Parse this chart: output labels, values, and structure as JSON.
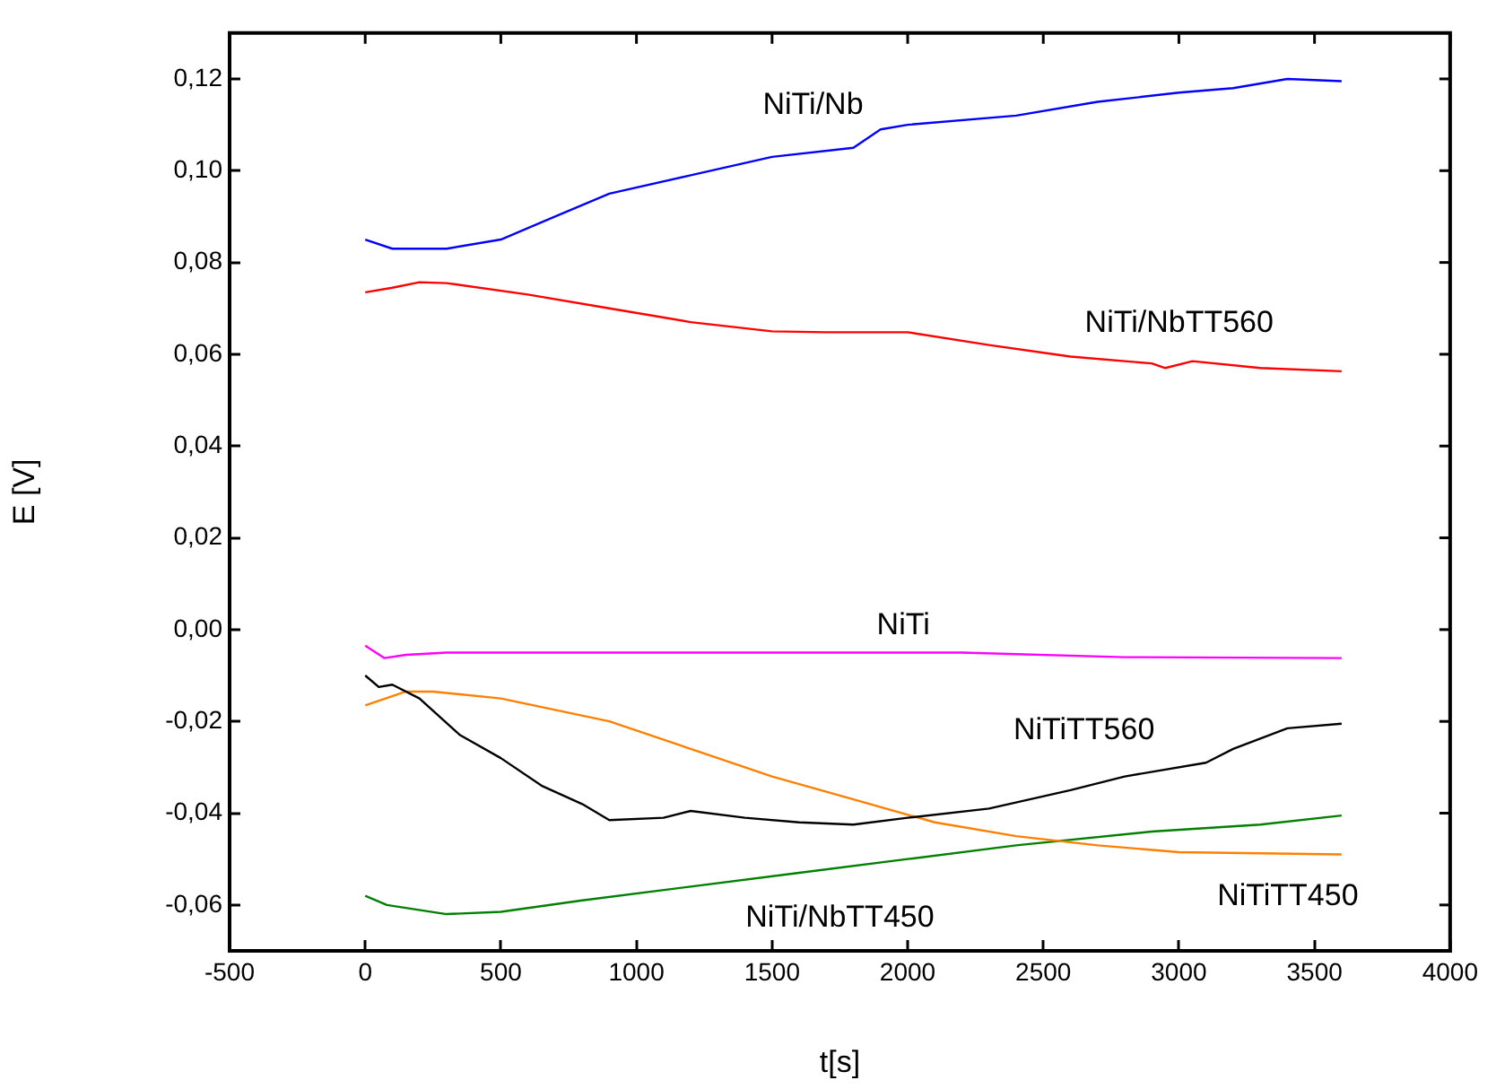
{
  "chart_data": {
    "type": "line",
    "xlabel": "t[s]",
    "ylabel": "E [V]",
    "xlim": [
      -500,
      4000
    ],
    "xticks": [
      -500,
      0,
      500,
      1000,
      1500,
      2000,
      2500,
      3000,
      3500,
      4000
    ],
    "ylim": [
      -0.07,
      0.13
    ],
    "yticks": [
      {
        "value": -0.06,
        "label": "-0,06"
      },
      {
        "value": -0.04,
        "label": "-0,04"
      },
      {
        "value": -0.02,
        "label": "-0,02"
      },
      {
        "value": 0,
        "label": "0,00"
      },
      {
        "value": 0.02,
        "label": "0,02"
      },
      {
        "value": 0.04,
        "label": "0,04"
      },
      {
        "value": 0.06,
        "label": "0,06"
      },
      {
        "value": 0.08,
        "label": "0,08"
      },
      {
        "value": 0.1,
        "label": "0,10"
      },
      {
        "value": 0.12,
        "label": "0,12"
      }
    ],
    "grid": false,
    "legend": false,
    "marker": "none",
    "line_style": "solid",
    "series": [
      {
        "name": "NiTi/Nb",
        "color": "#0000ff",
        "x": [
          0,
          100,
          300,
          500,
          700,
          900,
          1200,
          1500,
          1800,
          1900,
          2000,
          2400,
          2700,
          3000,
          3200,
          3400,
          3600
        ],
        "values": [
          0.085,
          0.083,
          0.083,
          0.085,
          0.09,
          0.095,
          0.099,
          0.103,
          0.105,
          0.109,
          0.11,
          0.112,
          0.115,
          0.117,
          0.118,
          0.12,
          0.1195
        ]
      },
      {
        "name": "NiTi/NbTT560",
        "color": "#ff0000",
        "x": [
          0,
          100,
          200,
          300,
          600,
          900,
          1200,
          1500,
          1700,
          2000,
          2300,
          2600,
          2900,
          2950,
          3050,
          3300,
          3600
        ],
        "values": [
          0.0735,
          0.0745,
          0.0757,
          0.0755,
          0.073,
          0.07,
          0.067,
          0.065,
          0.0648,
          0.0648,
          0.062,
          0.0595,
          0.058,
          0.057,
          0.0585,
          0.057,
          0.0563
        ]
      },
      {
        "name": "NiTi",
        "color": "#ff00ff",
        "x": [
          0,
          70,
          150,
          300,
          2200,
          2800,
          3600
        ],
        "values": [
          -0.0035,
          -0.0062,
          -0.0055,
          -0.005,
          -0.005,
          -0.006,
          -0.0062
        ]
      },
      {
        "name": "NiTiTT560",
        "color": "#000000",
        "x": [
          0,
          50,
          100,
          200,
          350,
          500,
          650,
          800,
          900,
          1100,
          1200,
          1400,
          1600,
          1800,
          2000,
          2300,
          2600,
          2800,
          3100,
          3200,
          3400,
          3600
        ],
        "values": [
          -0.01,
          -0.0125,
          -0.012,
          -0.015,
          -0.023,
          -0.028,
          -0.034,
          -0.038,
          -0.0415,
          -0.041,
          -0.0395,
          -0.041,
          -0.042,
          -0.0425,
          -0.041,
          -0.039,
          -0.035,
          -0.032,
          -0.029,
          -0.026,
          -0.0215,
          -0.0205
        ]
      },
      {
        "name": "NiTiTT450",
        "color": "#ff8000",
        "x": [
          0,
          150,
          250,
          500,
          900,
          1200,
          1500,
          1800,
          2100,
          2400,
          2700,
          3000,
          3600
        ],
        "values": [
          -0.0165,
          -0.0135,
          -0.0135,
          -0.015,
          -0.02,
          -0.026,
          -0.032,
          -0.037,
          -0.042,
          -0.045,
          -0.047,
          -0.0485,
          -0.049
        ]
      },
      {
        "name": "NiTi/NbTT450",
        "color": "#008000",
        "x": [
          0,
          80,
          300,
          500,
          800,
          1200,
          1600,
          2000,
          2400,
          2900,
          3300,
          3600
        ],
        "values": [
          -0.058,
          -0.06,
          -0.062,
          -0.0615,
          -0.059,
          -0.056,
          -0.053,
          -0.05,
          -0.047,
          -0.044,
          -0.0425,
          -0.0405
        ]
      }
    ]
  }
}
